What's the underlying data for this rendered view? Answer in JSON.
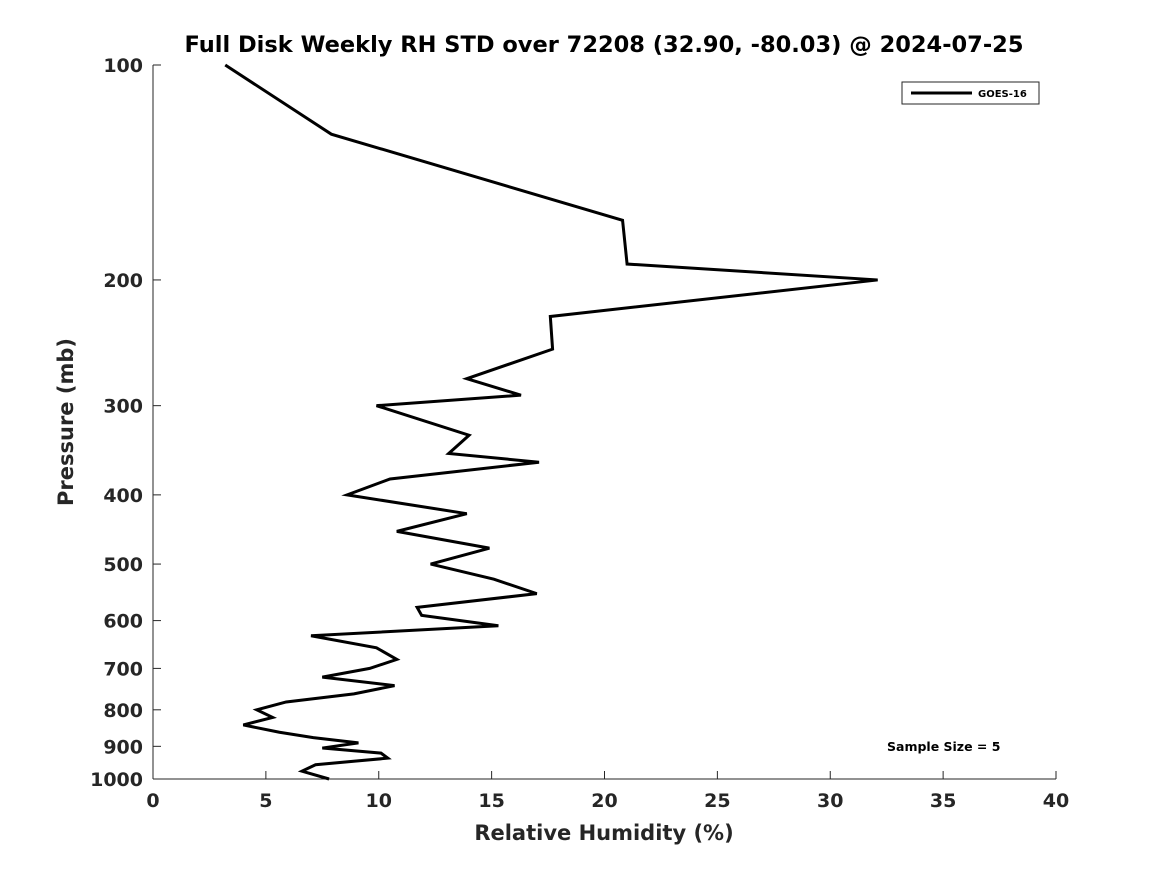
{
  "chart_data": {
    "type": "line",
    "title": "Full Disk Weekly RH STD over 72208 (32.90, -80.03) @ 2024-07-25",
    "xlabel": "Relative Humidity (%)",
    "ylabel": "Pressure (mb)",
    "xlim": [
      0,
      40
    ],
    "ylim": [
      100,
      1000
    ],
    "y_scale": "log",
    "y_reversed": true,
    "x_ticks": [
      "0",
      "5",
      "10",
      "15",
      "20",
      "25",
      "30",
      "35",
      "40"
    ],
    "y_ticks": [
      "100",
      "200",
      "300",
      "400",
      "500",
      "600",
      "700",
      "800",
      "900",
      "1000"
    ],
    "grid": false,
    "legend_position": "top-right",
    "series": [
      {
        "name": "GOES-16",
        "color": "#000000",
        "points": [
          [
            3.2,
            100
          ],
          [
            7.9,
            125
          ],
          [
            20.8,
            165
          ],
          [
            21.0,
            190
          ],
          [
            32.1,
            200
          ],
          [
            17.6,
            225
          ],
          [
            17.7,
            250
          ],
          [
            13.9,
            275
          ],
          [
            16.3,
            290
          ],
          [
            9.9,
            300
          ],
          [
            14.0,
            330
          ],
          [
            13.1,
            350
          ],
          [
            17.1,
            360
          ],
          [
            10.5,
            380
          ],
          [
            8.6,
            400
          ],
          [
            13.9,
            425
          ],
          [
            10.8,
            450
          ],
          [
            14.9,
            475
          ],
          [
            12.3,
            500
          ],
          [
            15.1,
            525
          ],
          [
            17.0,
            550
          ],
          [
            11.7,
            575
          ],
          [
            11.9,
            590
          ],
          [
            15.3,
            610
          ],
          [
            7.0,
            630
          ],
          [
            9.9,
            655
          ],
          [
            10.8,
            680
          ],
          [
            9.6,
            700
          ],
          [
            7.5,
            720
          ],
          [
            10.7,
            740
          ],
          [
            8.9,
            760
          ],
          [
            5.9,
            780
          ],
          [
            4.6,
            800
          ],
          [
            5.3,
            820
          ],
          [
            4.0,
            840
          ],
          [
            5.6,
            860
          ],
          [
            7.1,
            875
          ],
          [
            9.1,
            890
          ],
          [
            7.5,
            905
          ],
          [
            10.1,
            920
          ],
          [
            10.4,
            935
          ],
          [
            7.2,
            955
          ],
          [
            6.6,
            975
          ],
          [
            7.8,
            1000
          ]
        ]
      }
    ],
    "annotation": "Sample Size = 5"
  }
}
